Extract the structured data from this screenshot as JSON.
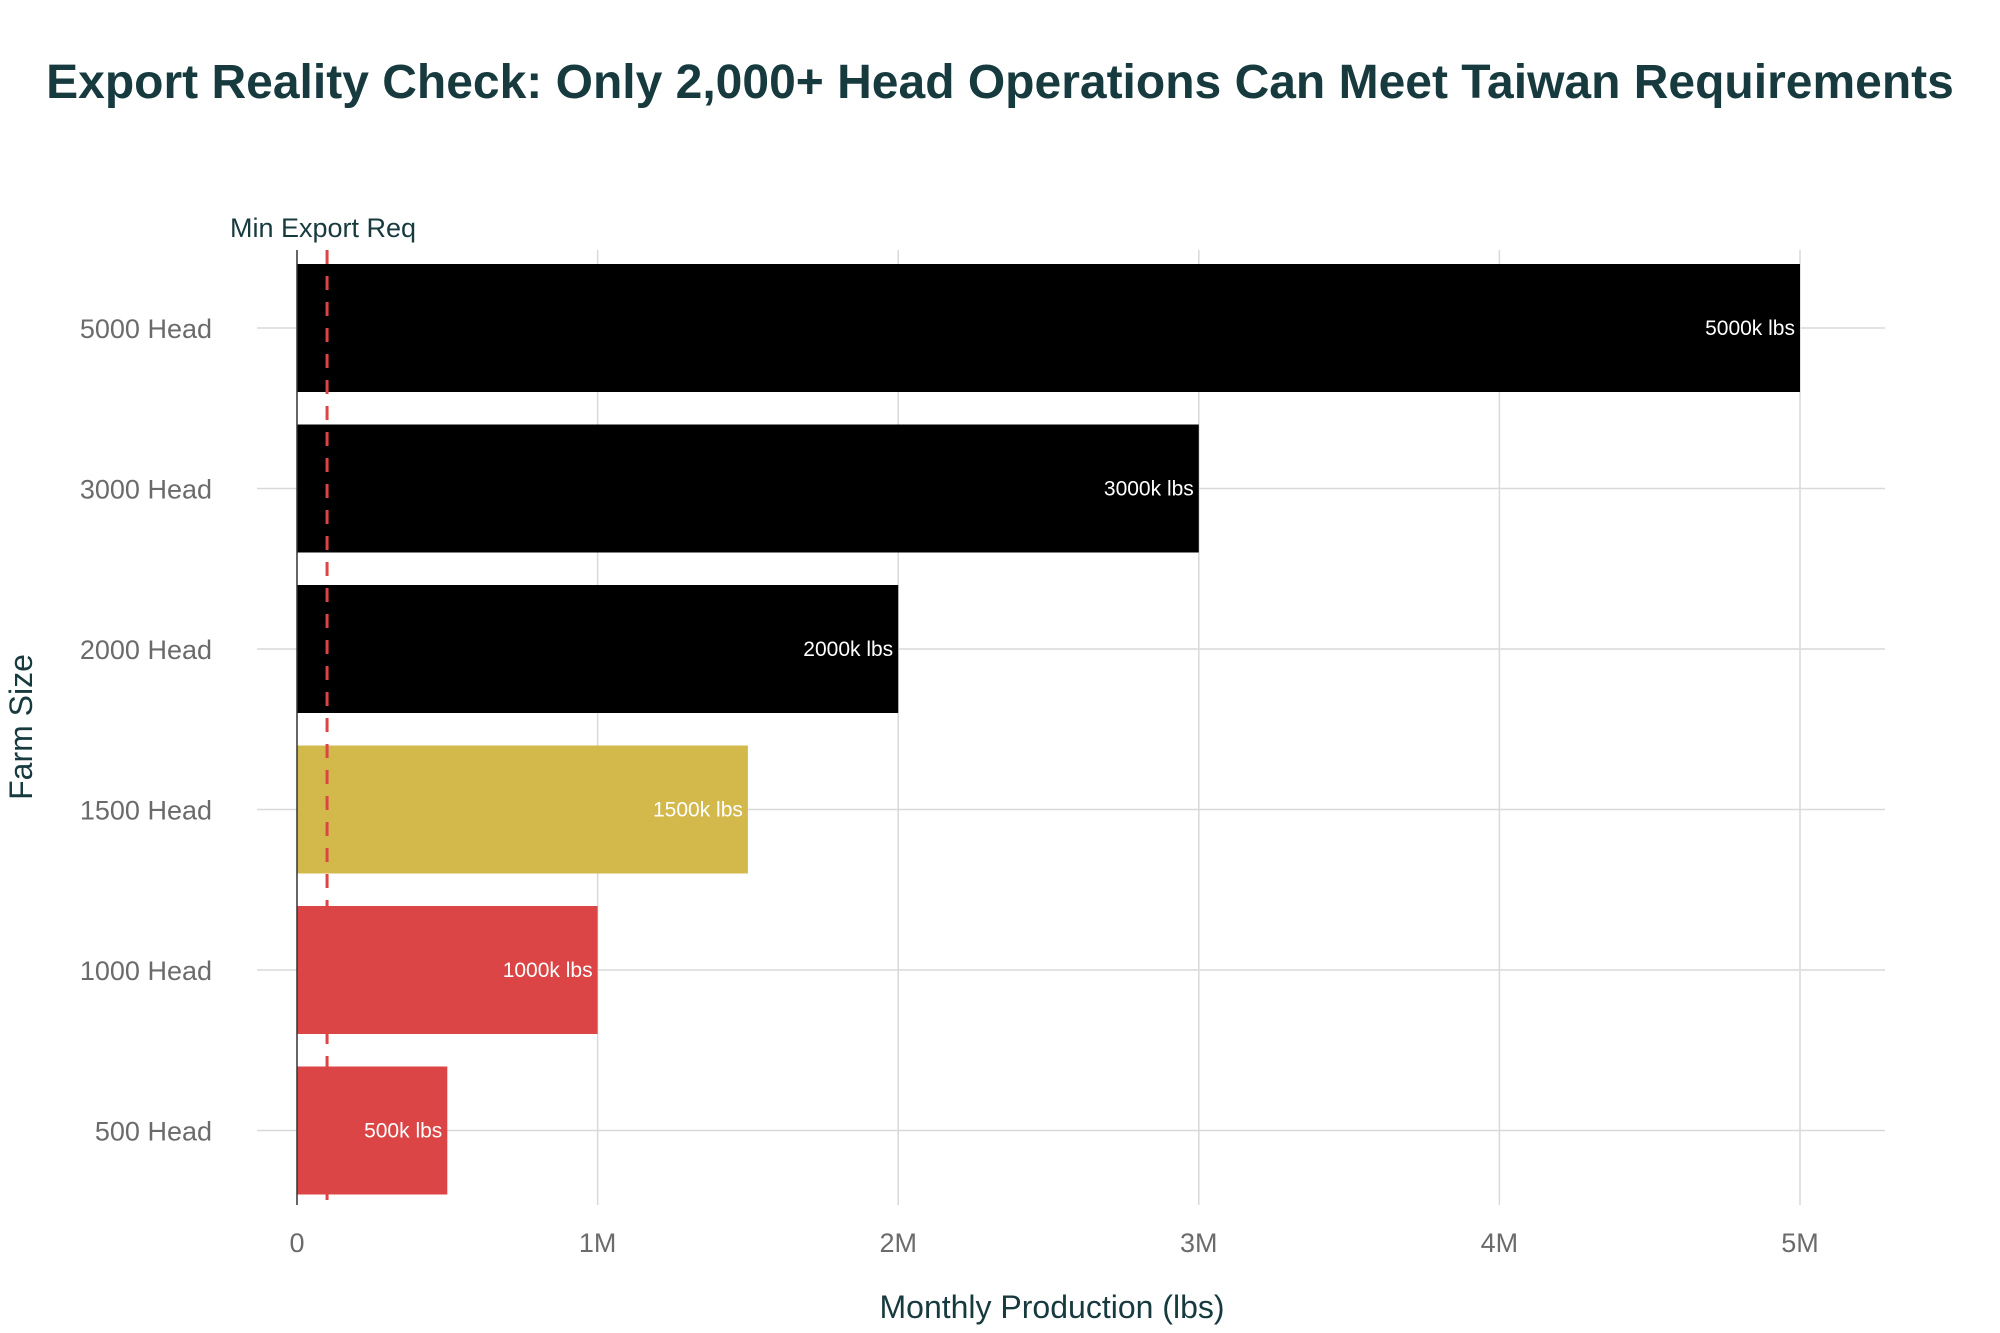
{
  "chart_data": {
    "type": "bar",
    "orientation": "horizontal",
    "title": "Export Reality Check: Only 2,000+ Head Operations Can Meet Taiwan Requirements",
    "xlabel": "Monthly Production (lbs)",
    "ylabel": "Farm Size",
    "xlim": [
      0,
      5300000
    ],
    "x_ticks": [
      {
        "value": 0,
        "label": "0"
      },
      {
        "value": 1000000,
        "label": "1M"
      },
      {
        "value": 2000000,
        "label": "2M"
      },
      {
        "value": 3000000,
        "label": "3M"
      },
      {
        "value": 4000000,
        "label": "4M"
      },
      {
        "value": 5000000,
        "label": "5M"
      }
    ],
    "categories": [
      "5000 Head",
      "3000 Head",
      "2000 Head",
      "1500 Head",
      "1000 Head",
      "500 Head"
    ],
    "values": [
      5000000,
      3000000,
      2000000,
      1500000,
      1000000,
      500000
    ],
    "data_labels": [
      "5000k lbs",
      "3000k lbs",
      "2000k lbs",
      "1500k lbs",
      "1000k lbs",
      "500k lbs"
    ],
    "bar_colors": [
      "#000000",
      "#000000",
      "#000000",
      "#d3b94c",
      "#db4545",
      "#db4545"
    ],
    "reference_line": {
      "value": 100000,
      "label": "Min Export Req",
      "color": "#db4545"
    },
    "grid": true,
    "legend": "none"
  }
}
